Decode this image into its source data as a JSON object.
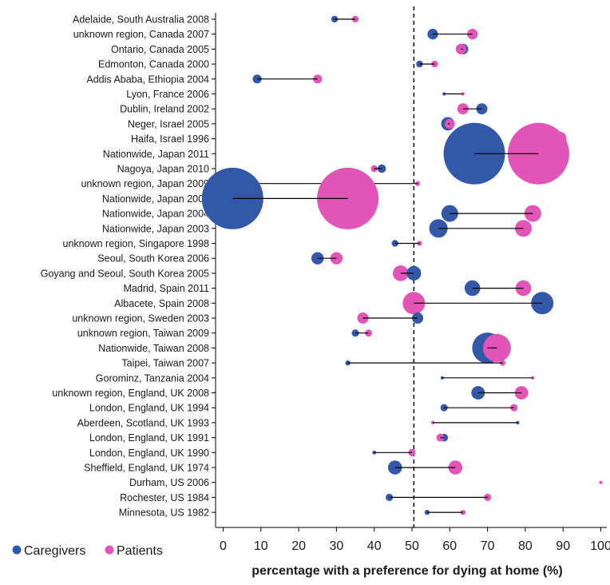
{
  "colors": {
    "caregivers": "#3358a8",
    "patients": "#e055b5",
    "axis": "#000000",
    "text": "#1a1a1a"
  },
  "chart_data": {
    "type": "scatter",
    "subtype": "dumbbell-bubble",
    "title": "",
    "xlabel": "percentage with a preference for dying at home (%)",
    "ylabel": "",
    "xlim": [
      0,
      103
    ],
    "xticks": [
      0,
      10,
      20,
      30,
      40,
      50,
      60,
      70,
      80,
      90,
      100
    ],
    "reference_line": {
      "x": 50.5,
      "style": "dashed"
    },
    "grid": false,
    "legend": {
      "position": "bottom-left",
      "entries": [
        "Caregivers",
        "Patients"
      ]
    },
    "series": [
      {
        "name": "Caregivers",
        "color_key": "caregivers"
      },
      {
        "name": "Patients",
        "color_key": "patients"
      }
    ],
    "rows": [
      {
        "label": "Adelaide, South Australia 2008",
        "caregivers": 29.5,
        "patients": 35.0,
        "c_size": 1.2,
        "p_size": 1.2
      },
      {
        "label": "unknown region, Canada 2007",
        "caregivers": 55.5,
        "patients": 66.0,
        "c_size": 1.9,
        "p_size": 1.9
      },
      {
        "label": "Ontario, Canada 2005",
        "caregivers": 63.5,
        "patients": 63.0,
        "c_size": 1.9,
        "p_size": 1.9
      },
      {
        "label": "Edmonton, Canada 2000",
        "caregivers": 52.0,
        "patients": 56.0,
        "c_size": 1.2,
        "p_size": 1.2
      },
      {
        "label": "Addis Ababa, Ethiopia 2004",
        "caregivers": 9.0,
        "patients": 25.0,
        "c_size": 1.6,
        "p_size": 1.6
      },
      {
        "label": "Lyon, France 2006",
        "caregivers": 58.5,
        "patients": 63.5,
        "c_size": 0.6,
        "p_size": 0.6
      },
      {
        "label": "Dublin, Ireland 2002",
        "caregivers": 68.5,
        "patients": 63.5,
        "c_size": 2.0,
        "p_size": 2.0
      },
      {
        "label": "Neger, Israel 2005",
        "caregivers": 59.5,
        "patients": 60.0,
        "c_size": 2.4,
        "p_size": 1.8
      },
      {
        "label": "Haifa, Israel 1996",
        "caregivers": 84.0,
        "patients": 89.0,
        "c_size": 2.3,
        "p_size": 2.6
      },
      {
        "label": "Nationwide, Japan 2011",
        "caregivers": 66.5,
        "patients": 83.5,
        "c_size": 11.0,
        "p_size": 11.0
      },
      {
        "label": "Nagoya, Japan 2010",
        "caregivers": 42.0,
        "patients": 40.0,
        "c_size": 1.5,
        "p_size": 1.2
      },
      {
        "label": "unknown region, Japan 2009",
        "caregivers": 3.0,
        "patients": 51.5,
        "c_size": 1.4,
        "p_size": 0.9
      },
      {
        "label": "Nationwide, Japan 2005",
        "caregivers": 2.5,
        "patients": 33.0,
        "c_size": 11.0,
        "p_size": 11.0
      },
      {
        "label": "Nationwide, Japan 2004",
        "caregivers": 60.0,
        "patients": 82.0,
        "c_size": 3.0,
        "p_size": 3.0
      },
      {
        "label": "Nationwide, Japan 2003",
        "caregivers": 57.0,
        "patients": 79.5,
        "c_size": 3.3,
        "p_size": 3.0
      },
      {
        "label": "unknown region, Singapore 1998",
        "caregivers": 45.5,
        "patients": 52.0,
        "c_size": 1.2,
        "p_size": 0.9
      },
      {
        "label": "Seoul, South Korea 2006",
        "caregivers": 25.0,
        "patients": 30.0,
        "c_size": 2.2,
        "p_size": 2.2
      },
      {
        "label": "Goyang and Seoul, South Korea 2005",
        "caregivers": 50.5,
        "patients": 47.0,
        "c_size": 2.6,
        "p_size": 2.8
      },
      {
        "label": "Madrid, Spain 2011",
        "caregivers": 66.0,
        "patients": 79.5,
        "c_size": 2.8,
        "p_size": 2.8
      },
      {
        "label": "Albacete, Spain 2008",
        "caregivers": 84.5,
        "patients": 50.5,
        "c_size": 4.0,
        "p_size": 4.0
      },
      {
        "label": "unknown region, Sweden 2003",
        "caregivers": 51.5,
        "patients": 37.0,
        "c_size": 2.0,
        "p_size": 2.0
      },
      {
        "label": "unknown region, Taiwan 2009",
        "caregivers": 35.0,
        "patients": 38.5,
        "c_size": 1.3,
        "p_size": 1.3
      },
      {
        "label": "Nationwide, Taiwan 2008",
        "caregivers": 70.0,
        "patients": 72.5,
        "c_size": 5.5,
        "p_size": 5.0
      },
      {
        "label": "Taipei, Taiwan 2007",
        "caregivers": 33.0,
        "patients": 74.0,
        "c_size": 0.9,
        "p_size": 1.0
      },
      {
        "label": "Gorominz, Tanzania 2004",
        "caregivers": 58.0,
        "patients": 82.0,
        "c_size": 0.6,
        "p_size": 0.6
      },
      {
        "label": "unknown region, England, UK 2008",
        "caregivers": 67.5,
        "patients": 79.0,
        "c_size": 2.4,
        "p_size": 2.4
      },
      {
        "label": "London, England, UK 1994",
        "caregivers": 58.5,
        "patients": 77.0,
        "c_size": 1.3,
        "p_size": 1.3
      },
      {
        "label": "Aberdeen, Scotland, UK 1993",
        "caregivers": 78.0,
        "patients": 55.5,
        "c_size": 0.6,
        "p_size": 0.6
      },
      {
        "label": "London, England, UK 1991",
        "caregivers": 58.5,
        "patients": 57.5,
        "c_size": 1.4,
        "p_size": 1.4
      },
      {
        "label": "London, England, UK 1990",
        "caregivers": 40.0,
        "patients": 50.0,
        "c_size": 0.7,
        "p_size": 1.3
      },
      {
        "label": "Sheffield, England, UK 1974",
        "caregivers": 45.5,
        "patients": 61.5,
        "c_size": 2.5,
        "p_size": 2.5
      },
      {
        "label": "Durham, US 2006",
        "caregivers": null,
        "patients": 100.0,
        "c_size": 0,
        "p_size": 0.6
      },
      {
        "label": "Rochester, US 1984",
        "caregivers": 44.0,
        "patients": 70.0,
        "c_size": 1.3,
        "p_size": 1.3
      },
      {
        "label": "Minnesota, US 1982",
        "caregivers": 54.0,
        "patients": 63.5,
        "c_size": 0.9,
        "p_size": 0.9
      }
    ]
  }
}
